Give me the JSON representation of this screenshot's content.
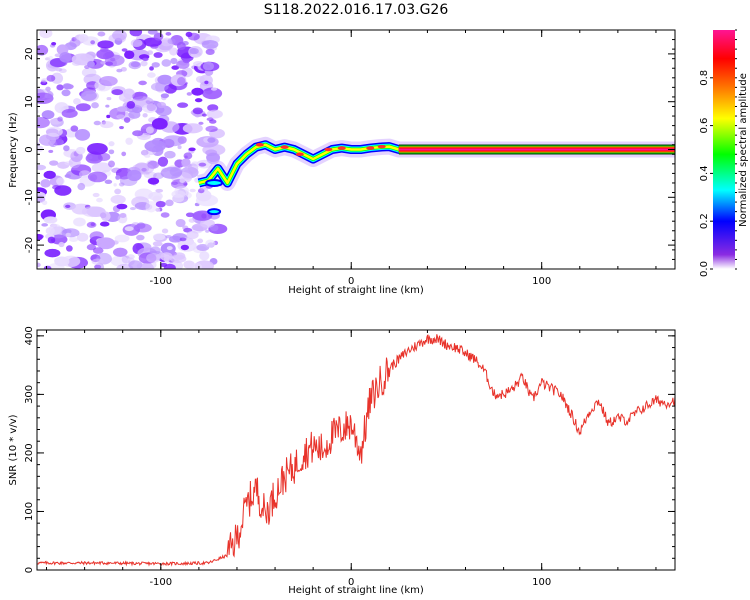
{
  "title": "S118.2022.016.17.03.G26",
  "chart_data": [
    {
      "type": "heatmap",
      "xlabel": "Height of straight line (km)",
      "ylabel": "Frequency (Hz)",
      "xlim": [
        -165,
        170
      ],
      "ylim": [
        -25,
        25
      ],
      "x_ticks": [
        -100,
        0,
        100
      ],
      "y_ticks": [
        -20,
        -10,
        0,
        10,
        20
      ],
      "colorbar": {
        "label": "Normalized spectral amplitude",
        "range": [
          0,
          1
        ],
        "ticks": [
          0.0,
          0.2,
          0.4,
          0.6,
          0.8
        ],
        "colors": [
          "#ffffff",
          "#8a2be2",
          "#0000ff",
          "#00ffff",
          "#00ff00",
          "#ffff00",
          "#ff8000",
          "#ff0000",
          "#ff1493"
        ]
      },
      "trace": {
        "x": [
          -80,
          -75,
          -70,
          -65,
          -60,
          -55,
          -50,
          -45,
          -40,
          -35,
          -30,
          -25,
          -20,
          -15,
          -10,
          -5,
          0,
          5,
          10,
          15,
          20,
          25,
          170
        ],
        "frequency": [
          -7,
          -6.5,
          -4,
          -7,
          -3,
          -1,
          0.5,
          1,
          0,
          0.5,
          0,
          -1,
          -2,
          -1,
          0,
          0.3,
          0,
          0,
          0.3,
          0.5,
          0.6,
          0,
          0
        ]
      },
      "noise_region_xmax": -75
    },
    {
      "type": "line",
      "xlabel": "Height of straight line (km)",
      "ylabel": "SNR (10 * v/v)",
      "xlim": [
        -165,
        170
      ],
      "ylim": [
        0,
        410
      ],
      "x_ticks": [
        -100,
        0,
        100
      ],
      "y_ticks": [
        0,
        100,
        200,
        300,
        400
      ],
      "color": "#e8332b",
      "series": [
        {
          "x": [
            -165,
            -150,
            -130,
            -110,
            -90,
            -75,
            -65,
            -60,
            -55,
            -50,
            -45,
            -40,
            -35,
            -30,
            -25,
            -20,
            -15,
            -10,
            -5,
            0,
            5,
            10,
            15,
            20,
            25,
            30,
            35,
            40,
            45,
            50,
            55,
            60,
            65,
            70,
            75,
            80,
            85,
            90,
            95,
            100,
            105,
            110,
            115,
            120,
            125,
            130,
            135,
            140,
            145,
            150,
            155,
            160,
            165,
            170
          ],
          "y": [
            12,
            12,
            12,
            11,
            11,
            12,
            25,
            55,
            110,
            140,
            95,
            130,
            160,
            175,
            200,
            210,
            205,
            230,
            240,
            250,
            200,
            290,
            320,
            345,
            360,
            375,
            385,
            395,
            395,
            385,
            380,
            370,
            360,
            340,
            300,
            300,
            310,
            330,
            290,
            320,
            310,
            300,
            270,
            235,
            270,
            290,
            250,
            260,
            255,
            270,
            280,
            290,
            285,
            290
          ]
        }
      ]
    }
  ]
}
